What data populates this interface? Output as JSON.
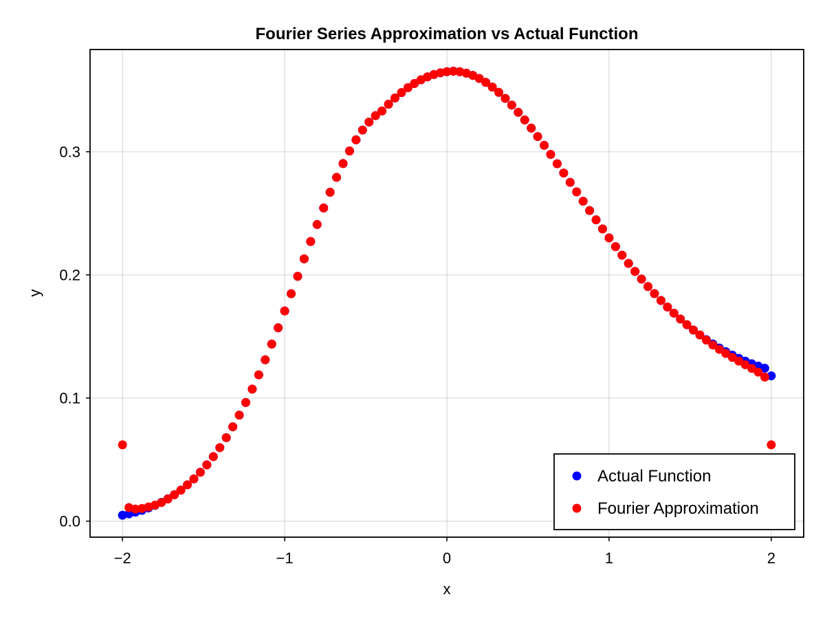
{
  "chart_data": {
    "type": "scatter",
    "title": "Fourier Series Approximation vs Actual Function",
    "xlabel": "x",
    "ylabel": "y",
    "xlim": [
      -2.2,
      2.2
    ],
    "ylim": [
      -0.013,
      0.383
    ],
    "xticks": [
      -2,
      -1,
      0,
      1,
      2
    ],
    "xtick_labels": [
      "−2",
      "−1",
      "0",
      "1",
      "2"
    ],
    "yticks": [
      0.0,
      0.1,
      0.2,
      0.3
    ],
    "ytick_labels": [
      "0.0",
      "0.1",
      "0.2",
      "0.3"
    ],
    "grid": true,
    "legend_position": "bottom-right",
    "x_range": [
      -2,
      2
    ],
    "n_points": 101,
    "series": [
      {
        "name": "Actual Function",
        "color": "#0000ff",
        "values": [
          0.0048,
          0.0059,
          0.0073,
          0.0088,
          0.0107,
          0.0128,
          0.0153,
          0.0182,
          0.0215,
          0.0252,
          0.0295,
          0.0343,
          0.0397,
          0.0457,
          0.0524,
          0.0597,
          0.0678,
          0.0766,
          0.0861,
          0.0963,
          0.1072,
          0.1188,
          0.131,
          0.1438,
          0.157,
          0.1707,
          0.1847,
          0.1988,
          0.213,
          0.2271,
          0.2409,
          0.2543,
          0.2671,
          0.2792,
          0.2904,
          0.3006,
          0.3097,
          0.3176,
          0.3241,
          0.3293,
          0.3331,
          0.3386,
          0.3436,
          0.348,
          0.352,
          0.3554,
          0.3584,
          0.3608,
          0.3627,
          0.3641,
          0.365,
          0.3654,
          0.365,
          0.3638,
          0.362,
          0.3595,
          0.3563,
          0.3525,
          0.3482,
          0.3433,
          0.3379,
          0.332,
          0.3258,
          0.3192,
          0.3123,
          0.3052,
          0.2978,
          0.2903,
          0.2827,
          0.2751,
          0.2674,
          0.2598,
          0.2522,
          0.2447,
          0.2373,
          0.23,
          0.2229,
          0.216,
          0.2093,
          0.2028,
          0.1966,
          0.1905,
          0.1848,
          0.1792,
          0.1739,
          0.1689,
          0.1641,
          0.1595,
          0.1552,
          0.1512,
          0.1474,
          0.1439,
          0.1406,
          0.1376,
          0.1348,
          0.1322,
          0.1299,
          0.1278,
          0.1259,
          0.1242,
          0.118
        ]
      },
      {
        "name": "Fourier Approximation",
        "color": "#ff0000",
        "values": [
          0.062,
          0.011,
          0.0098,
          0.0103,
          0.0115,
          0.013,
          0.0151,
          0.018,
          0.0215,
          0.0252,
          0.0295,
          0.0343,
          0.0397,
          0.0457,
          0.0524,
          0.0597,
          0.0678,
          0.0766,
          0.0861,
          0.0963,
          0.1072,
          0.1188,
          0.131,
          0.1438,
          0.157,
          0.1707,
          0.1847,
          0.1988,
          0.213,
          0.2271,
          0.2409,
          0.2543,
          0.2671,
          0.2792,
          0.2904,
          0.3006,
          0.3097,
          0.3176,
          0.3241,
          0.3293,
          0.3331,
          0.3386,
          0.3436,
          0.348,
          0.352,
          0.3554,
          0.3584,
          0.3608,
          0.3627,
          0.3641,
          0.365,
          0.3654,
          0.365,
          0.3638,
          0.362,
          0.3595,
          0.3563,
          0.3525,
          0.3482,
          0.3433,
          0.3379,
          0.332,
          0.3258,
          0.3192,
          0.3123,
          0.3052,
          0.2978,
          0.2903,
          0.2827,
          0.2751,
          0.2674,
          0.2598,
          0.2522,
          0.2447,
          0.2373,
          0.23,
          0.2229,
          0.216,
          0.2093,
          0.2028,
          0.1966,
          0.1905,
          0.1848,
          0.1792,
          0.1739,
          0.1689,
          0.1641,
          0.1595,
          0.1552,
          0.1512,
          0.147,
          0.143,
          0.1395,
          0.1362,
          0.133,
          0.13,
          0.127,
          0.124,
          0.121,
          0.117,
          0.062
        ]
      }
    ]
  }
}
